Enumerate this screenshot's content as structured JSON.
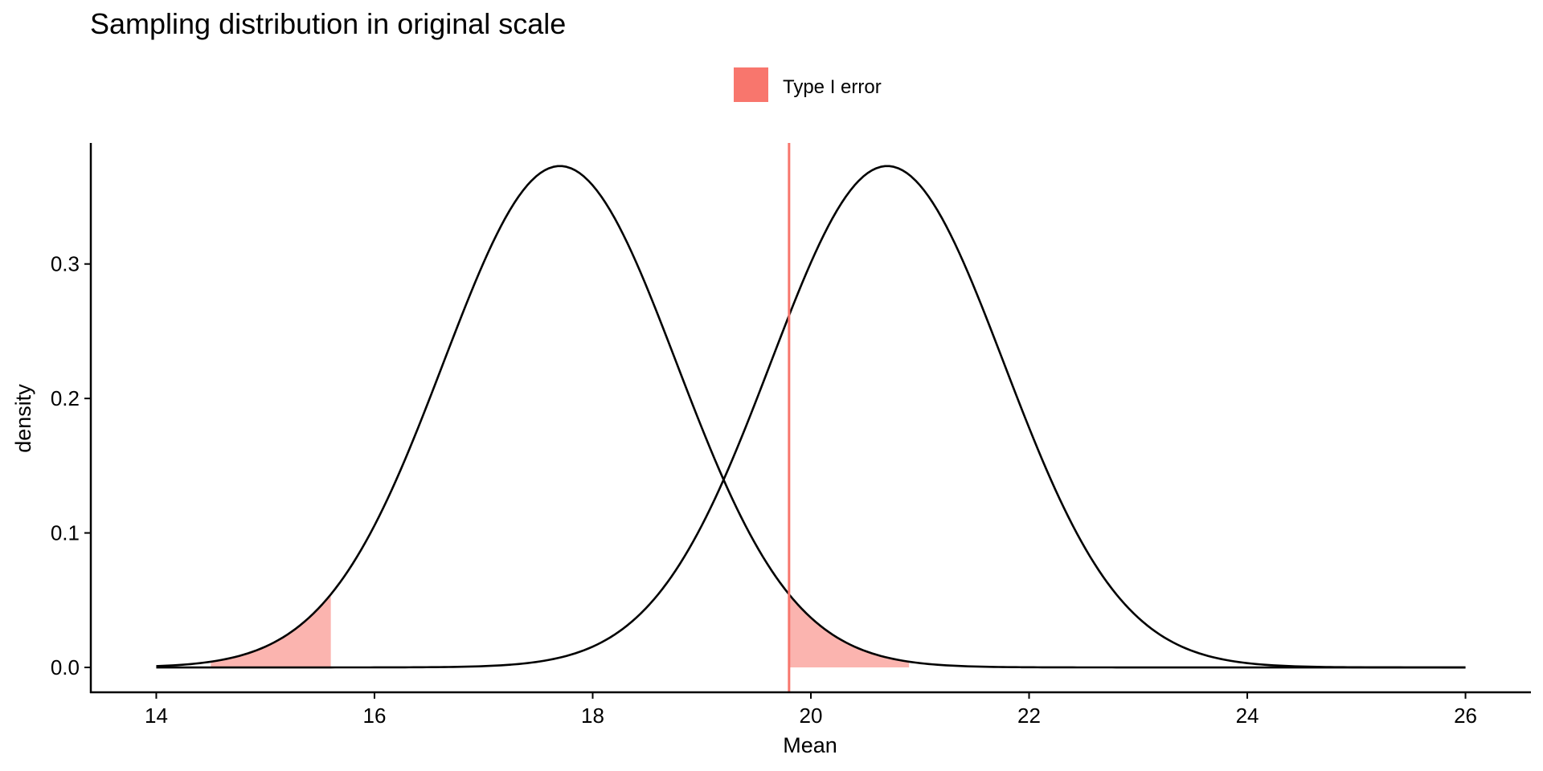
{
  "chart_data": {
    "type": "line",
    "title": "Sampling distribution in original scale",
    "xlabel": "Mean",
    "ylabel": "density",
    "xlim": [
      13.4,
      26.6
    ],
    "ylim": [
      -0.0185,
      0.39
    ],
    "x_ticks": [
      14,
      16,
      18,
      20,
      22,
      24,
      26
    ],
    "y_ticks": [
      0.0,
      0.1,
      0.2,
      0.3
    ],
    "y_tick_labels": [
      "0.0",
      "0.1",
      "0.2",
      "0.3"
    ],
    "grid": false,
    "legend_position": "top",
    "legend": [
      {
        "label": "Type I error",
        "color": "#F8766D"
      }
    ],
    "series": [
      {
        "distribution": "normal",
        "mean": 17.7,
        "sd": 1.07,
        "x_range": [
          14,
          26
        ],
        "color": "#000000"
      },
      {
        "distribution": "normal",
        "mean": 20.7,
        "sd": 1.07,
        "x_range": [
          14,
          26
        ],
        "color": "#000000"
      }
    ],
    "critical_line": {
      "x": 19.8,
      "color": "#F8766D"
    },
    "shaded_regions": [
      {
        "name": "Type I error",
        "curve": 0,
        "x_from": 14.5,
        "x_to": 15.6,
        "color": "#F8766D"
      },
      {
        "name": "Type I error",
        "curve": 0,
        "x_from": 19.8,
        "x_to": 20.9,
        "color": "#F8766D"
      }
    ]
  }
}
